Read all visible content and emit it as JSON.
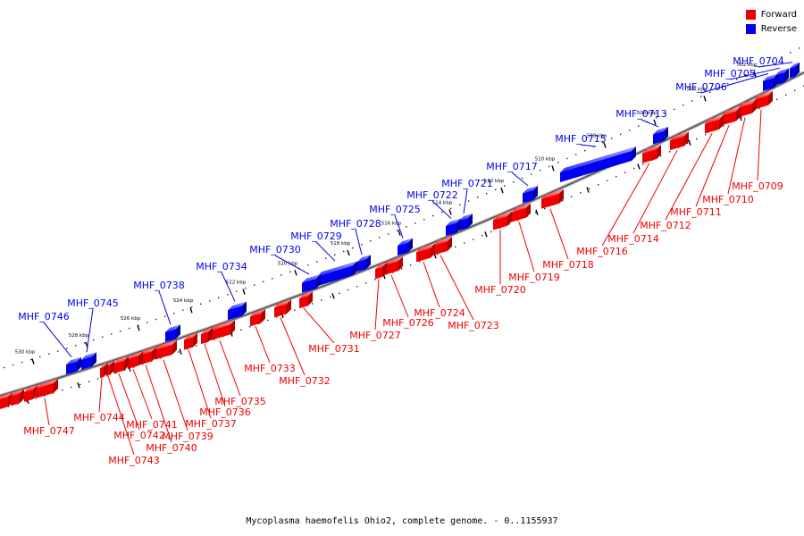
{
  "legend": {
    "forward_label": "Forward",
    "reverse_label": "Reverse",
    "forward_color": "#ee0000",
    "reverse_color": "#0000ee"
  },
  "footer": {
    "caption": "Mycoplasma haemofelis Ohio2, complete genome. - 0..1155937"
  },
  "genome": {
    "name": "Mycoplasma haemofelis Ohio2, complete genome.",
    "length": 1155937,
    "tick_unit": "kbp",
    "scale_ticks": [
      {
        "kbp": 502,
        "label": "502 kbp"
      },
      {
        "kbp": 504,
        "label": "504 kbp"
      },
      {
        "kbp": 506,
        "label": "506 kbp"
      },
      {
        "kbp": 508,
        "label": "508 kbp"
      },
      {
        "kbp": 510,
        "label": "510 kbp"
      },
      {
        "kbp": 512,
        "label": "512 kbp"
      },
      {
        "kbp": 514,
        "label": "514 kbp"
      },
      {
        "kbp": 516,
        "label": "516 kbp"
      },
      {
        "kbp": 518,
        "label": "518 kbp"
      },
      {
        "kbp": 520,
        "label": "520 kbp"
      },
      {
        "kbp": 522,
        "label": "522 kbp"
      },
      {
        "kbp": 524,
        "label": "524 kbp"
      },
      {
        "kbp": 526,
        "label": "526 kbp"
      },
      {
        "kbp": 528,
        "label": "528 kbp"
      },
      {
        "kbp": 530,
        "label": "530 kbp"
      }
    ]
  },
  "genes": [
    {
      "label": "MHF_0704",
      "strand": "reverse"
    },
    {
      "label": "MHF_0705",
      "strand": "reverse"
    },
    {
      "label": "MHF_0706",
      "strand": "reverse"
    },
    {
      "label": "MHF_0709",
      "strand": "forward"
    },
    {
      "label": "MHF_0710",
      "strand": "forward"
    },
    {
      "label": "MHF_0711",
      "strand": "forward"
    },
    {
      "label": "MHF_0712",
      "strand": "forward"
    },
    {
      "label": "MHF_0713",
      "strand": "reverse"
    },
    {
      "label": "MHF_0714",
      "strand": "forward"
    },
    {
      "label": "MHF_0715",
      "strand": "reverse"
    },
    {
      "label": "MHF_0716",
      "strand": "forward"
    },
    {
      "label": "MHF_0717",
      "strand": "reverse"
    },
    {
      "label": "MHF_0718",
      "strand": "forward"
    },
    {
      "label": "MHF_0719",
      "strand": "forward"
    },
    {
      "label": "MHF_0720",
      "strand": "forward"
    },
    {
      "label": "MHF_0721",
      "strand": "reverse"
    },
    {
      "label": "MHF_0722",
      "strand": "reverse"
    },
    {
      "label": "MHF_0723",
      "strand": "forward"
    },
    {
      "label": "MHF_0724",
      "strand": "forward"
    },
    {
      "label": "MHF_0725",
      "strand": "reverse"
    },
    {
      "label": "MHF_0726",
      "strand": "forward"
    },
    {
      "label": "MHF_0727",
      "strand": "forward"
    },
    {
      "label": "MHF_0728",
      "strand": "reverse"
    },
    {
      "label": "MHF_0729",
      "strand": "reverse"
    },
    {
      "label": "MHF_0730",
      "strand": "reverse"
    },
    {
      "label": "MHF_0731",
      "strand": "forward"
    },
    {
      "label": "MHF_0732",
      "strand": "forward"
    },
    {
      "label": "MHF_0733",
      "strand": "forward"
    },
    {
      "label": "MHF_0734",
      "strand": "reverse"
    },
    {
      "label": "MHF_0735",
      "strand": "forward"
    },
    {
      "label": "MHF_0736",
      "strand": "forward"
    },
    {
      "label": "MHF_0737",
      "strand": "forward"
    },
    {
      "label": "MHF_0738",
      "strand": "reverse"
    },
    {
      "label": "MHF_0739",
      "strand": "forward"
    },
    {
      "label": "MHF_0740",
      "strand": "forward"
    },
    {
      "label": "MHF_0741",
      "strand": "forward"
    },
    {
      "label": "MHF_0742",
      "strand": "forward"
    },
    {
      "label": "MHF_0743",
      "strand": "forward"
    },
    {
      "label": "MHF_0744",
      "strand": "forward"
    },
    {
      "label": "MHF_0745",
      "strand": "reverse"
    },
    {
      "label": "MHF_0746",
      "strand": "reverse"
    },
    {
      "label": "MHF_0747",
      "strand": "forward"
    }
  ]
}
